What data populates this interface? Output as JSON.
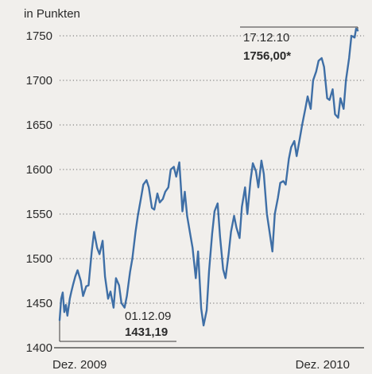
{
  "chart_data": {
    "type": "line",
    "title": "",
    "xlabel": "",
    "ylabel": "in Punkten",
    "ylim": [
      1400,
      1760
    ],
    "y_ticks": [
      1400,
      1450,
      1500,
      1550,
      1600,
      1650,
      1700,
      1750
    ],
    "x_tick_labels": [
      "Dez. 2009",
      "Dez. 2010"
    ],
    "grid": "horizontal dotted",
    "line_color": "#3f6fa6",
    "annotations": [
      {
        "date": "01.12.09",
        "value": "1431,19"
      },
      {
        "date": "17.12.10",
        "value": "1756,00*"
      }
    ],
    "series": [
      {
        "x": [
          "2009-12-01",
          "2009-12-03",
          "2009-12-05",
          "2009-12-07",
          "2009-12-09",
          "2009-12-11",
          "2009-12-14",
          "2009-12-16",
          "2009-12-18",
          "2009-12-21",
          "2009-12-24",
          "2009-12-28",
          "2009-12-31",
          "2010-01-04",
          "2010-01-07",
          "2010-01-11",
          "2010-01-14",
          "2010-01-18",
          "2010-01-21",
          "2010-01-25",
          "2010-01-28",
          "2010-02-01",
          "2010-02-04",
          "2010-02-08",
          "2010-02-11",
          "2010-02-15",
          "2010-02-18",
          "2010-02-22",
          "2010-02-25",
          "2010-03-01",
          "2010-03-04",
          "2010-03-08",
          "2010-03-11",
          "2010-03-15",
          "2010-03-18",
          "2010-03-22",
          "2010-03-25",
          "2010-03-29",
          "2010-04-01",
          "2010-04-05",
          "2010-04-08",
          "2010-04-12",
          "2010-04-15",
          "2010-04-19",
          "2010-04-22",
          "2010-04-26",
          "2010-04-29",
          "2010-05-03",
          "2010-05-06",
          "2010-05-07",
          "2010-05-10",
          "2010-05-13",
          "2010-05-17",
          "2010-05-20",
          "2010-05-24",
          "2010-05-27",
          "2010-05-31",
          "2010-06-03",
          "2010-06-07",
          "2010-06-10",
          "2010-06-14",
          "2010-06-17",
          "2010-06-21",
          "2010-06-24",
          "2010-06-28",
          "2010-07-01",
          "2010-07-05",
          "2010-07-08",
          "2010-07-12",
          "2010-07-15",
          "2010-07-19",
          "2010-07-22",
          "2010-07-26",
          "2010-07-29",
          "2010-08-02",
          "2010-08-05",
          "2010-08-09",
          "2010-08-12",
          "2010-08-16",
          "2010-08-19",
          "2010-08-23",
          "2010-08-26",
          "2010-08-30",
          "2010-09-02",
          "2010-09-06",
          "2010-09-09",
          "2010-09-13",
          "2010-09-16",
          "2010-09-20",
          "2010-09-23",
          "2010-09-27",
          "2010-09-30",
          "2010-10-04",
          "2010-10-07",
          "2010-10-11",
          "2010-10-14",
          "2010-10-18",
          "2010-10-21",
          "2010-10-25",
          "2010-10-28",
          "2010-11-01",
          "2010-11-04",
          "2010-11-08",
          "2010-11-11",
          "2010-11-15",
          "2010-11-18",
          "2010-11-22",
          "2010-11-25",
          "2010-11-29",
          "2010-12-02",
          "2010-12-06",
          "2010-12-09",
          "2010-12-13",
          "2010-12-15",
          "2010-12-17"
        ],
        "values": [
          1431,
          1455,
          1462,
          1440,
          1448,
          1436,
          1455,
          1463,
          1470,
          1480,
          1487,
          1475,
          1458,
          1469,
          1470,
          1508,
          1530,
          1512,
          1505,
          1520,
          1480,
          1455,
          1463,
          1445,
          1478,
          1470,
          1450,
          1445,
          1458,
          1485,
          1500,
          1530,
          1548,
          1568,
          1583,
          1588,
          1580,
          1557,
          1555,
          1573,
          1563,
          1567,
          1575,
          1580,
          1600,
          1603,
          1592,
          1608,
          1568,
          1553,
          1575,
          1548,
          1527,
          1512,
          1478,
          1508,
          1444,
          1425,
          1442,
          1486,
          1528,
          1553,
          1562,
          1525,
          1488,
          1478,
          1505,
          1530,
          1548,
          1535,
          1523,
          1558,
          1580,
          1550,
          1588,
          1607,
          1598,
          1580,
          1610,
          1595,
          1550,
          1532,
          1508,
          1550,
          1568,
          1585,
          1587,
          1583,
          1612,
          1625,
          1632,
          1615,
          1635,
          1650,
          1668,
          1682,
          1668,
          1700,
          1710,
          1722,
          1725,
          1715,
          1680,
          1678,
          1690,
          1662,
          1658,
          1680,
          1668,
          1700,
          1725,
          1750,
          1748,
          1758,
          1756
        ]
      }
    ]
  }
}
